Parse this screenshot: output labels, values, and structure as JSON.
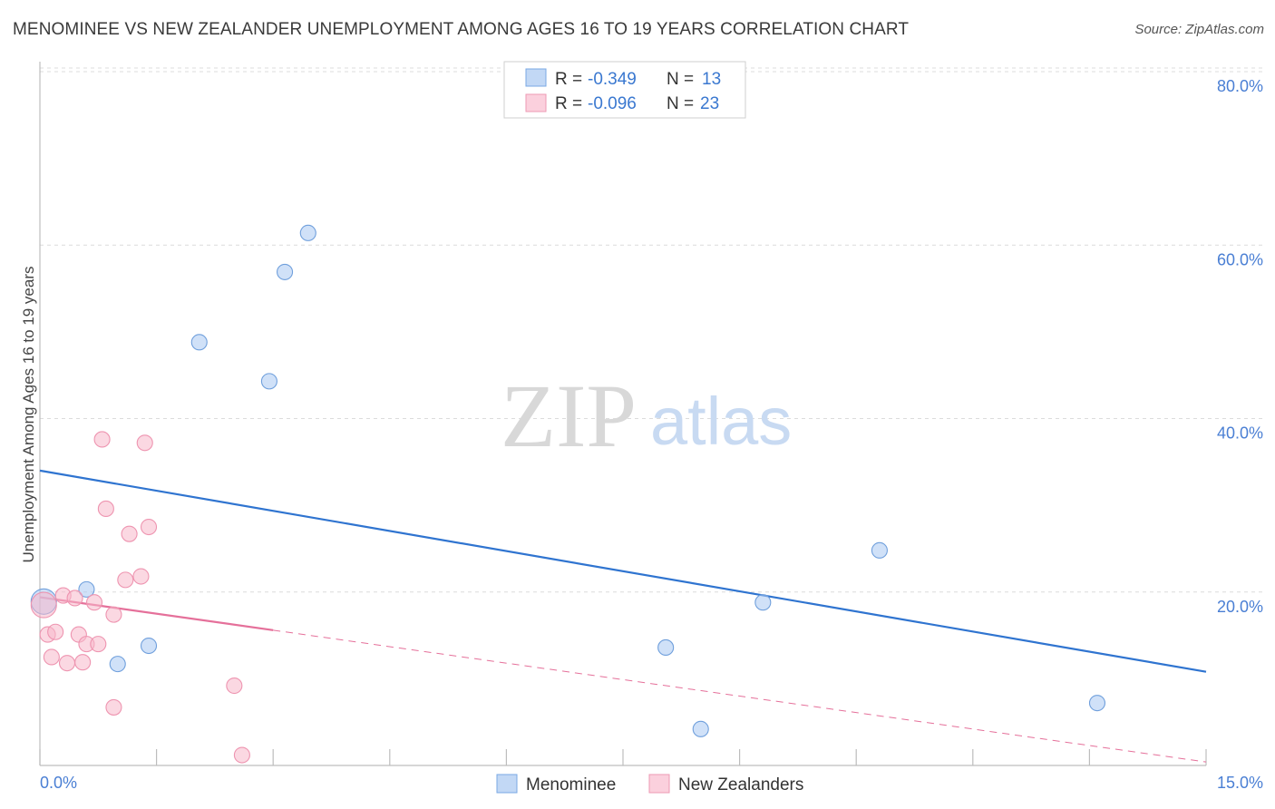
{
  "title": "MENOMINEE VS NEW ZEALANDER UNEMPLOYMENT AMONG AGES 16 TO 19 YEARS CORRELATION CHART",
  "source": "Source: ZipAtlas.com",
  "watermark": {
    "part1": "ZIP",
    "part2": "atlas"
  },
  "stats": {
    "rows": [
      {
        "r_label": "R =",
        "r_value": "-0.349",
        "n_label": "N =",
        "n_value": "13",
        "color": "#a9c9f2"
      },
      {
        "r_label": "R =",
        "r_value": "-0.096",
        "n_label": "N =",
        "n_value": "23",
        "color": "#f7b8cb"
      }
    ]
  },
  "legend": {
    "items": [
      {
        "label": "Menominee",
        "color": "#a9c9f2"
      },
      {
        "label": "New Zealanders",
        "color": "#f7b8cb"
      }
    ]
  },
  "chart_data": {
    "type": "scatter",
    "xlabel": "",
    "ylabel": "Unemployment Among Ages 16 to 19 years",
    "xlim": [
      0,
      15
    ],
    "ylim": [
      0,
      80
    ],
    "x_tick_labels": [
      "0.0%",
      "15.0%"
    ],
    "y_ticks": [
      20,
      40,
      60,
      80
    ],
    "y_tick_labels": [
      "20.0%",
      "40.0%",
      "60.0%",
      "80.0%"
    ],
    "grid": true,
    "series": [
      {
        "name": "Menominee",
        "color": "#a9c9f2",
        "stroke": "#6f9fdc",
        "line_color": "#2f74d0",
        "points": [
          {
            "x": 0.05,
            "y": 18.9
          },
          {
            "x": 0.6,
            "y": 20.3
          },
          {
            "x": 1.0,
            "y": 11.7
          },
          {
            "x": 1.4,
            "y": 13.8
          },
          {
            "x": 2.05,
            "y": 48.8
          },
          {
            "x": 2.95,
            "y": 44.3
          },
          {
            "x": 3.15,
            "y": 56.9
          },
          {
            "x": 3.45,
            "y": 61.4
          },
          {
            "x": 8.05,
            "y": 13.6
          },
          {
            "x": 8.5,
            "y": 4.2
          },
          {
            "x": 9.3,
            "y": 18.8
          },
          {
            "x": 10.8,
            "y": 24.8
          },
          {
            "x": 13.6,
            "y": 7.2
          }
        ],
        "trend": {
          "x0": 0,
          "y0": 34.0,
          "x1": 15,
          "y1": 10.8,
          "dash_from": null
        }
      },
      {
        "name": "New Zealanders",
        "color": "#f7b8cb",
        "stroke": "#ee94b0",
        "line_color": "#e5709a",
        "points": [
          {
            "x": 0.05,
            "y": 18.5
          },
          {
            "x": 0.1,
            "y": 15.1
          },
          {
            "x": 0.15,
            "y": 12.5
          },
          {
            "x": 0.2,
            "y": 15.4
          },
          {
            "x": 0.3,
            "y": 19.6
          },
          {
            "x": 0.35,
            "y": 11.8
          },
          {
            "x": 0.45,
            "y": 19.3
          },
          {
            "x": 0.5,
            "y": 15.1
          },
          {
            "x": 0.55,
            "y": 11.9
          },
          {
            "x": 0.6,
            "y": 14.0
          },
          {
            "x": 0.7,
            "y": 18.8
          },
          {
            "x": 0.75,
            "y": 14.0
          },
          {
            "x": 0.8,
            "y": 37.6
          },
          {
            "x": 0.85,
            "y": 29.6
          },
          {
            "x": 0.95,
            "y": 17.4
          },
          {
            "x": 0.95,
            "y": 6.7
          },
          {
            "x": 1.1,
            "y": 21.4
          },
          {
            "x": 1.15,
            "y": 26.7
          },
          {
            "x": 1.3,
            "y": 21.8
          },
          {
            "x": 1.35,
            "y": 37.2
          },
          {
            "x": 1.4,
            "y": 27.5
          },
          {
            "x": 2.5,
            "y": 9.2
          },
          {
            "x": 2.6,
            "y": 1.2
          }
        ],
        "trend": {
          "x0": 0,
          "y0": 19.4,
          "x1": 15,
          "y1": 0.4,
          "dash_from": 3.0
        }
      }
    ]
  }
}
